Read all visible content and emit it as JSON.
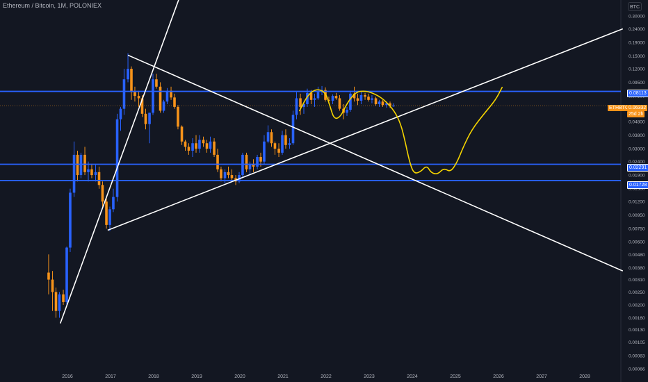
{
  "header": {
    "title": "Ethereum / Bitcoin, 1M, POLONIEX"
  },
  "price_axis": {
    "unit_button": "BTC",
    "labels": [
      "0.30000",
      "0.24000",
      "0.19000",
      "0.15000",
      "0.12000",
      "0.09500",
      "0.07500",
      "0.06000",
      "0.04800",
      "0.03800",
      "0.03000",
      "0.02400",
      "0.01900",
      "0.01500",
      "0.01200",
      "0.00950",
      "0.00750",
      "0.00600",
      "0.00480",
      "0.00380",
      "0.00310",
      "0.00250",
      "0.00200",
      "0.00160",
      "0.00130",
      "0.00105",
      "0.00083",
      "0.00066"
    ]
  },
  "badges": {
    "level_1": "0.08113",
    "symbol": "ETHBTC",
    "last_price": "0.06332",
    "countdown": "25d 2h",
    "level_2": "0.02291",
    "level_3": "0.01728"
  },
  "colors": {
    "background": "#131722",
    "up": "#2962ff",
    "down": "#f7931a",
    "level_line": "#2962ff",
    "trend_line": "#ffffff",
    "projection": "#f5d400",
    "last_price_line": "#f7931a"
  },
  "chart_data": {
    "type": "candlestick",
    "x_tick_labels": [
      "2016",
      "2017",
      "2018",
      "2019",
      "2020",
      "2021",
      "2022",
      "2023",
      "2024",
      "2025",
      "2026",
      "2027",
      "2028"
    ],
    "y_scale": "log",
    "ylim": [
      0.0006,
      0.33
    ],
    "horizontal_levels": [
      0.08113,
      0.02291,
      0.01728
    ],
    "last_price": 0.06332,
    "candles": [
      {
        "t": 2015.58,
        "o": 0.0035,
        "h": 0.0048,
        "l": 0.0024,
        "c": 0.0031
      },
      {
        "t": 2015.67,
        "o": 0.0031,
        "h": 0.0036,
        "l": 0.0018,
        "c": 0.0025
      },
      {
        "t": 2015.75,
        "o": 0.0025,
        "h": 0.0027,
        "l": 0.0016,
        "c": 0.0018
      },
      {
        "t": 2015.83,
        "o": 0.0018,
        "h": 0.0025,
        "l": 0.0016,
        "c": 0.0024
      },
      {
        "t": 2015.92,
        "o": 0.0024,
        "h": 0.0026,
        "l": 0.002,
        "c": 0.0021
      },
      {
        "t": 2016.0,
        "o": 0.0021,
        "h": 0.0055,
        "l": 0.002,
        "c": 0.0054
      },
      {
        "t": 2016.08,
        "o": 0.0054,
        "h": 0.015,
        "l": 0.005,
        "c": 0.014
      },
      {
        "t": 2016.17,
        "o": 0.014,
        "h": 0.034,
        "l": 0.013,
        "c": 0.027
      },
      {
        "t": 2016.25,
        "o": 0.027,
        "h": 0.029,
        "l": 0.017,
        "c": 0.019
      },
      {
        "t": 2016.33,
        "o": 0.019,
        "h": 0.028,
        "l": 0.018,
        "c": 0.027
      },
      {
        "t": 2016.42,
        "o": 0.027,
        "h": 0.031,
        "l": 0.019,
        "c": 0.02
      },
      {
        "t": 2016.5,
        "o": 0.02,
        "h": 0.024,
        "l": 0.017,
        "c": 0.021
      },
      {
        "t": 2016.58,
        "o": 0.021,
        "h": 0.023,
        "l": 0.018,
        "c": 0.019
      },
      {
        "t": 2016.67,
        "o": 0.019,
        "h": 0.023,
        "l": 0.017,
        "c": 0.02
      },
      {
        "t": 2016.75,
        "o": 0.02,
        "h": 0.022,
        "l": 0.015,
        "c": 0.016
      },
      {
        "t": 2016.83,
        "o": 0.016,
        "h": 0.017,
        "l": 0.011,
        "c": 0.012
      },
      {
        "t": 2016.92,
        "o": 0.012,
        "h": 0.013,
        "l": 0.0075,
        "c": 0.008
      },
      {
        "t": 2017.0,
        "o": 0.008,
        "h": 0.011,
        "l": 0.0072,
        "c": 0.0105
      },
      {
        "t": 2017.08,
        "o": 0.0105,
        "h": 0.015,
        "l": 0.01,
        "c": 0.013
      },
      {
        "t": 2017.17,
        "o": 0.013,
        "h": 0.055,
        "l": 0.012,
        "c": 0.05
      },
      {
        "t": 2017.25,
        "o": 0.05,
        "h": 0.062,
        "l": 0.041,
        "c": 0.06
      },
      {
        "t": 2017.33,
        "o": 0.06,
        "h": 0.12,
        "l": 0.054,
        "c": 0.1
      },
      {
        "t": 2017.42,
        "o": 0.1,
        "h": 0.157,
        "l": 0.095,
        "c": 0.12
      },
      {
        "t": 2017.5,
        "o": 0.12,
        "h": 0.125,
        "l": 0.07,
        "c": 0.08
      },
      {
        "t": 2017.58,
        "o": 0.08,
        "h": 0.088,
        "l": 0.068,
        "c": 0.075
      },
      {
        "t": 2017.67,
        "o": 0.075,
        "h": 0.082,
        "l": 0.062,
        "c": 0.072
      },
      {
        "t": 2017.75,
        "o": 0.072,
        "h": 0.076,
        "l": 0.052,
        "c": 0.055
      },
      {
        "t": 2017.83,
        "o": 0.055,
        "h": 0.06,
        "l": 0.042,
        "c": 0.046
      },
      {
        "t": 2017.92,
        "o": 0.046,
        "h": 0.056,
        "l": 0.033,
        "c": 0.056
      },
      {
        "t": 2018.0,
        "o": 0.056,
        "h": 0.11,
        "l": 0.054,
        "c": 0.1
      },
      {
        "t": 2018.08,
        "o": 0.1,
        "h": 0.11,
        "l": 0.085,
        "c": 0.088
      },
      {
        "t": 2018.17,
        "o": 0.088,
        "h": 0.095,
        "l": 0.056,
        "c": 0.058
      },
      {
        "t": 2018.25,
        "o": 0.058,
        "h": 0.07,
        "l": 0.056,
        "c": 0.068
      },
      {
        "t": 2018.33,
        "o": 0.068,
        "h": 0.086,
        "l": 0.065,
        "c": 0.082
      },
      {
        "t": 2018.42,
        "o": 0.082,
        "h": 0.088,
        "l": 0.07,
        "c": 0.073
      },
      {
        "t": 2018.5,
        "o": 0.073,
        "h": 0.078,
        "l": 0.06,
        "c": 0.062
      },
      {
        "t": 2018.58,
        "o": 0.062,
        "h": 0.064,
        "l": 0.042,
        "c": 0.044
      },
      {
        "t": 2018.67,
        "o": 0.044,
        "h": 0.045,
        "l": 0.032,
        "c": 0.034
      },
      {
        "t": 2018.75,
        "o": 0.034,
        "h": 0.035,
        "l": 0.029,
        "c": 0.031
      },
      {
        "t": 2018.83,
        "o": 0.031,
        "h": 0.033,
        "l": 0.027,
        "c": 0.029
      },
      {
        "t": 2018.92,
        "o": 0.029,
        "h": 0.036,
        "l": 0.026,
        "c": 0.033
      },
      {
        "t": 2019.0,
        "o": 0.033,
        "h": 0.038,
        "l": 0.028,
        "c": 0.03
      },
      {
        "t": 2019.08,
        "o": 0.03,
        "h": 0.038,
        "l": 0.028,
        "c": 0.035
      },
      {
        "t": 2019.17,
        "o": 0.035,
        "h": 0.037,
        "l": 0.031,
        "c": 0.033
      },
      {
        "t": 2019.25,
        "o": 0.033,
        "h": 0.035,
        "l": 0.028,
        "c": 0.03
      },
      {
        "t": 2019.33,
        "o": 0.03,
        "h": 0.037,
        "l": 0.028,
        "c": 0.034
      },
      {
        "t": 2019.42,
        "o": 0.034,
        "h": 0.036,
        "l": 0.026,
        "c": 0.027
      },
      {
        "t": 2019.5,
        "o": 0.027,
        "h": 0.03,
        "l": 0.02,
        "c": 0.021
      },
      {
        "t": 2019.58,
        "o": 0.021,
        "h": 0.022,
        "l": 0.017,
        "c": 0.018
      },
      {
        "t": 2019.67,
        "o": 0.018,
        "h": 0.021,
        "l": 0.0165,
        "c": 0.02
      },
      {
        "t": 2019.75,
        "o": 0.02,
        "h": 0.022,
        "l": 0.018,
        "c": 0.019
      },
      {
        "t": 2019.83,
        "o": 0.019,
        "h": 0.021,
        "l": 0.017,
        "c": 0.018
      },
      {
        "t": 2019.92,
        "o": 0.018,
        "h": 0.019,
        "l": 0.016,
        "c": 0.017
      },
      {
        "t": 2020.0,
        "o": 0.017,
        "h": 0.02,
        "l": 0.0165,
        "c": 0.019
      },
      {
        "t": 2020.08,
        "o": 0.019,
        "h": 0.028,
        "l": 0.018,
        "c": 0.027
      },
      {
        "t": 2020.17,
        "o": 0.027,
        "h": 0.028,
        "l": 0.02,
        "c": 0.021
      },
      {
        "t": 2020.25,
        "o": 0.021,
        "h": 0.024,
        "l": 0.019,
        "c": 0.023
      },
      {
        "t": 2020.33,
        "o": 0.023,
        "h": 0.025,
        "l": 0.02,
        "c": 0.022
      },
      {
        "t": 2020.42,
        "o": 0.022,
        "h": 0.027,
        "l": 0.021,
        "c": 0.026
      },
      {
        "t": 2020.5,
        "o": 0.026,
        "h": 0.028,
        "l": 0.022,
        "c": 0.024
      },
      {
        "t": 2020.58,
        "o": 0.024,
        "h": 0.038,
        "l": 0.023,
        "c": 0.034
      },
      {
        "t": 2020.67,
        "o": 0.034,
        "h": 0.045,
        "l": 0.033,
        "c": 0.04
      },
      {
        "t": 2020.75,
        "o": 0.04,
        "h": 0.042,
        "l": 0.031,
        "c": 0.033
      },
      {
        "t": 2020.83,
        "o": 0.033,
        "h": 0.034,
        "l": 0.027,
        "c": 0.03
      },
      {
        "t": 2020.92,
        "o": 0.03,
        "h": 0.033,
        "l": 0.026,
        "c": 0.028
      },
      {
        "t": 2021.0,
        "o": 0.028,
        "h": 0.041,
        "l": 0.027,
        "c": 0.038
      },
      {
        "t": 2021.08,
        "o": 0.038,
        "h": 0.042,
        "l": 0.03,
        "c": 0.032
      },
      {
        "t": 2021.17,
        "o": 0.032,
        "h": 0.036,
        "l": 0.03,
        "c": 0.033
      },
      {
        "t": 2021.25,
        "o": 0.033,
        "h": 0.058,
        "l": 0.032,
        "c": 0.054
      },
      {
        "t": 2021.33,
        "o": 0.054,
        "h": 0.08,
        "l": 0.05,
        "c": 0.072
      },
      {
        "t": 2021.42,
        "o": 0.072,
        "h": 0.078,
        "l": 0.054,
        "c": 0.062
      },
      {
        "t": 2021.5,
        "o": 0.062,
        "h": 0.068,
        "l": 0.055,
        "c": 0.065
      },
      {
        "t": 2021.58,
        "o": 0.065,
        "h": 0.085,
        "l": 0.062,
        "c": 0.079
      },
      {
        "t": 2021.67,
        "o": 0.079,
        "h": 0.083,
        "l": 0.065,
        "c": 0.07
      },
      {
        "t": 2021.75,
        "o": 0.07,
        "h": 0.078,
        "l": 0.062,
        "c": 0.072
      },
      {
        "t": 2021.83,
        "o": 0.072,
        "h": 0.088,
        "l": 0.07,
        "c": 0.08
      },
      {
        "t": 2021.92,
        "o": 0.08,
        "h": 0.089,
        "l": 0.076,
        "c": 0.083
      },
      {
        "t": 2022.0,
        "o": 0.083,
        "h": 0.087,
        "l": 0.068,
        "c": 0.07
      },
      {
        "t": 2022.08,
        "o": 0.07,
        "h": 0.074,
        "l": 0.065,
        "c": 0.069
      },
      {
        "t": 2022.17,
        "o": 0.069,
        "h": 0.077,
        "l": 0.065,
        "c": 0.075
      },
      {
        "t": 2022.25,
        "o": 0.075,
        "h": 0.079,
        "l": 0.07,
        "c": 0.072
      },
      {
        "t": 2022.33,
        "o": 0.072,
        "h": 0.076,
        "l": 0.058,
        "c": 0.06
      },
      {
        "t": 2022.42,
        "o": 0.06,
        "h": 0.065,
        "l": 0.05,
        "c": 0.056
      },
      {
        "t": 2022.5,
        "o": 0.056,
        "h": 0.062,
        "l": 0.053,
        "c": 0.059
      },
      {
        "t": 2022.58,
        "o": 0.059,
        "h": 0.082,
        "l": 0.057,
        "c": 0.078
      },
      {
        "t": 2022.67,
        "o": 0.078,
        "h": 0.088,
        "l": 0.068,
        "c": 0.072
      },
      {
        "t": 2022.75,
        "o": 0.072,
        "h": 0.078,
        "l": 0.064,
        "c": 0.069
      },
      {
        "t": 2022.83,
        "o": 0.069,
        "h": 0.08,
        "l": 0.065,
        "c": 0.076
      },
      {
        "t": 2022.92,
        "o": 0.076,
        "h": 0.079,
        "l": 0.07,
        "c": 0.074
      },
      {
        "t": 2023.0,
        "o": 0.074,
        "h": 0.078,
        "l": 0.068,
        "c": 0.07
      },
      {
        "t": 2023.08,
        "o": 0.07,
        "h": 0.076,
        "l": 0.066,
        "c": 0.072
      },
      {
        "t": 2023.17,
        "o": 0.072,
        "h": 0.074,
        "l": 0.063,
        "c": 0.065
      },
      {
        "t": 2023.25,
        "o": 0.065,
        "h": 0.07,
        "l": 0.062,
        "c": 0.068
      },
      {
        "t": 2023.33,
        "o": 0.068,
        "h": 0.07,
        "l": 0.062,
        "c": 0.064
      },
      {
        "t": 2023.42,
        "o": 0.064,
        "h": 0.068,
        "l": 0.061,
        "c": 0.066
      },
      {
        "t": 2023.5,
        "o": 0.066,
        "h": 0.068,
        "l": 0.061,
        "c": 0.063
      },
      {
        "t": 2023.58,
        "o": 0.063,
        "h": 0.066,
        "l": 0.062,
        "c": 0.06332
      }
    ],
    "trend_lines": [
      {
        "from": {
          "t": 2015.85,
          "p": 0.00145
        },
        "to": {
          "t": 2018.6,
          "p": 0.4
        }
      },
      {
        "from": {
          "t": 2016.95,
          "p": 0.0073
        },
        "to": {
          "t": 2028.9,
          "p": 0.24
        }
      },
      {
        "from": {
          "t": 2017.42,
          "p": 0.152
        },
        "to": {
          "t": 2028.9,
          "p": 0.0036
        }
      }
    ],
    "projection_path": [
      {
        "t": 2021.4,
        "p": 0.058
      },
      {
        "t": 2021.6,
        "p": 0.077
      },
      {
        "t": 2021.8,
        "p": 0.085
      },
      {
        "t": 2022.0,
        "p": 0.08
      },
      {
        "t": 2022.1,
        "p": 0.064
      },
      {
        "t": 2022.2,
        "p": 0.05
      },
      {
        "t": 2022.35,
        "p": 0.052
      },
      {
        "t": 2022.5,
        "p": 0.066
      },
      {
        "t": 2022.7,
        "p": 0.08
      },
      {
        "t": 2022.9,
        "p": 0.082
      },
      {
        "t": 2023.1,
        "p": 0.079
      },
      {
        "t": 2023.35,
        "p": 0.071
      },
      {
        "t": 2023.6,
        "p": 0.058
      },
      {
        "t": 2023.75,
        "p": 0.046
      },
      {
        "t": 2023.85,
        "p": 0.034
      },
      {
        "t": 2023.95,
        "p": 0.024
      },
      {
        "t": 2024.05,
        "p": 0.0195
      },
      {
        "t": 2024.2,
        "p": 0.02
      },
      {
        "t": 2024.35,
        "p": 0.0225
      },
      {
        "t": 2024.45,
        "p": 0.0198
      },
      {
        "t": 2024.6,
        "p": 0.0192
      },
      {
        "t": 2024.75,
        "p": 0.0215
      },
      {
        "t": 2024.9,
        "p": 0.02
      },
      {
        "t": 2025.05,
        "p": 0.0235
      },
      {
        "t": 2025.2,
        "p": 0.031
      },
      {
        "t": 2025.4,
        "p": 0.042
      },
      {
        "t": 2025.7,
        "p": 0.056
      },
      {
        "t": 2025.95,
        "p": 0.07
      },
      {
        "t": 2026.1,
        "p": 0.087
      }
    ]
  }
}
